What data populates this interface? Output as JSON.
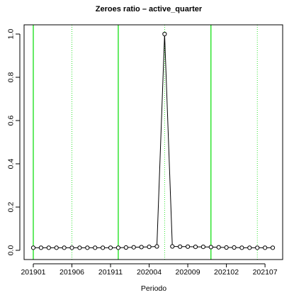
{
  "chart_data": {
    "type": "line",
    "title": "Zeroes ratio  –  active_quarter",
    "xlabel": "Periodo",
    "ylabel": "",
    "ylim": [
      0.0,
      1.0
    ],
    "yticks": [
      "0.0",
      "0.2",
      "0.4",
      "0.6",
      "0.8",
      "1.0"
    ],
    "xtick_labels": [
      "201901",
      "201906",
      "201911",
      "202004",
      "202009",
      "202102",
      "202107"
    ],
    "x": [
      "201901",
      "201902",
      "201903",
      "201904",
      "201905",
      "201906",
      "201907",
      "201908",
      "201909",
      "201910",
      "201911",
      "201912",
      "202001",
      "202002",
      "202003",
      "202004",
      "202005",
      "202006",
      "202007",
      "202008",
      "202009",
      "202010",
      "202011",
      "202012",
      "202101",
      "202102",
      "202103",
      "202104",
      "202105",
      "202106",
      "202107",
      "202108"
    ],
    "values": [
      0.012,
      0.012,
      0.012,
      0.012,
      0.012,
      0.012,
      0.012,
      0.012,
      0.012,
      0.012,
      0.012,
      0.012,
      0.013,
      0.014,
      0.015,
      0.016,
      0.018,
      1.0,
      0.018,
      0.017,
      0.017,
      0.016,
      0.016,
      0.015,
      0.014,
      0.013,
      0.013,
      0.012,
      0.012,
      0.012,
      0.012,
      0.012
    ],
    "vlines_solid": [
      "201901",
      "201912",
      "202012"
    ],
    "vlines_dotted": [
      "201906",
      "202006",
      "202106"
    ],
    "grid": false,
    "colors": {
      "line": "#000000",
      "vline": "#00dd00"
    }
  }
}
